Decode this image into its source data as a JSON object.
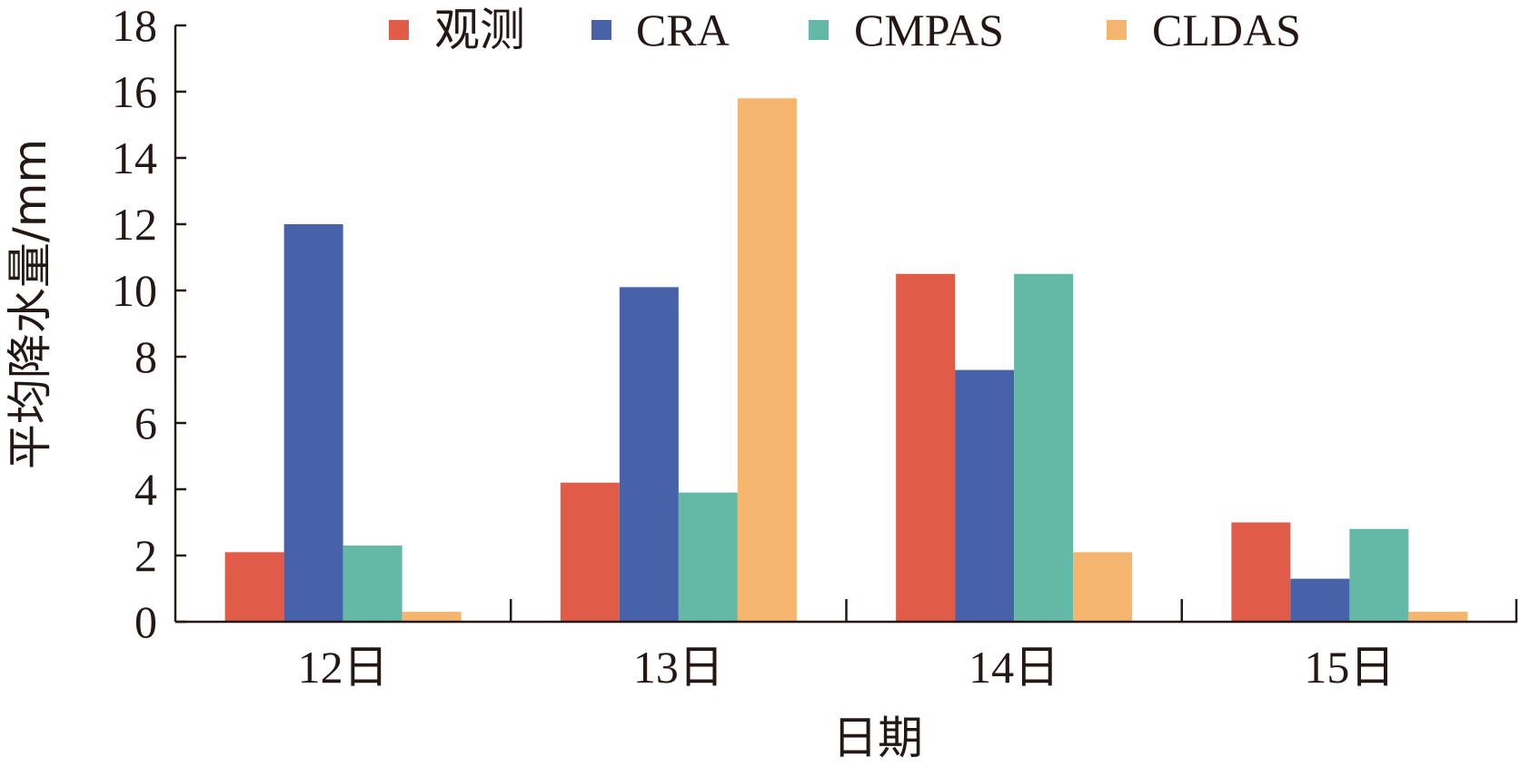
{
  "chart_data": {
    "type": "bar",
    "categories": [
      "12日",
      "13日",
      "14日",
      "15日"
    ],
    "series": [
      {
        "name": "观测",
        "color": "#E05C48",
        "values": [
          2.1,
          4.2,
          10.5,
          3.0
        ]
      },
      {
        "name": "CRA",
        "color": "#4762A8",
        "values": [
          12.0,
          10.1,
          7.6,
          1.3
        ]
      },
      {
        "name": "CMPAS",
        "color": "#63B8A6",
        "values": [
          2.3,
          3.9,
          10.5,
          2.8
        ]
      },
      {
        "name": "CLDAS",
        "color": "#F5B56E",
        "values": [
          0.3,
          15.8,
          2.1,
          0.3
        ]
      }
    ],
    "title": "",
    "xlabel": "日期",
    "ylabel": "平均降水量/mm",
    "ylim": [
      0,
      18
    ],
    "yticks": [
      0,
      2,
      4,
      6,
      8,
      10,
      12,
      14,
      16,
      18
    ],
    "legend": "top",
    "grid": false
  }
}
